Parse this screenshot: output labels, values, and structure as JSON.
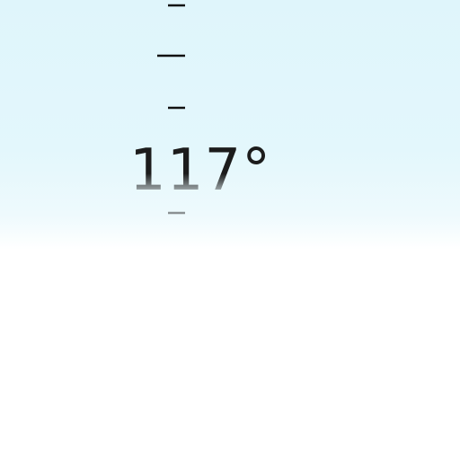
{
  "heading": {
    "value": "117°"
  },
  "colors": {
    "sky_top": "#dff5fb",
    "ground": "#ffffff",
    "ink": "#1c1c1c"
  }
}
